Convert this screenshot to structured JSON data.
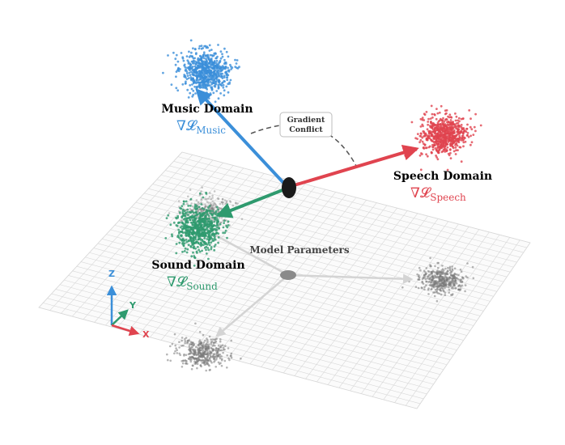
{
  "labels": {
    "music_domain": "Music Domain",
    "music_gradient": "∇𝓛",
    "music_sub": "Music",
    "speech_domain": "Speech Domain",
    "speech_gradient": "∇𝓛",
    "speech_sub": "Speech",
    "sound_domain": "Sound Domain",
    "sound_gradient": "∇𝓛",
    "sound_sub": "Sound",
    "conflict_line1": "Gradient",
    "conflict_line2": "Conflict",
    "model_parameters": "Model Parameters",
    "axis_x": "X",
    "axis_y": "Y",
    "axis_z": "Z"
  },
  "colors": {
    "music": "#3b8fd9",
    "speech": "#e0444f",
    "sound": "#2e9a6e",
    "shadow": "#7a7a7a",
    "grid": "#d8d8d8",
    "node": "#1a1a1a"
  },
  "icons": {
    "origin": "ellipse-node",
    "axes": "xyz-triad"
  }
}
